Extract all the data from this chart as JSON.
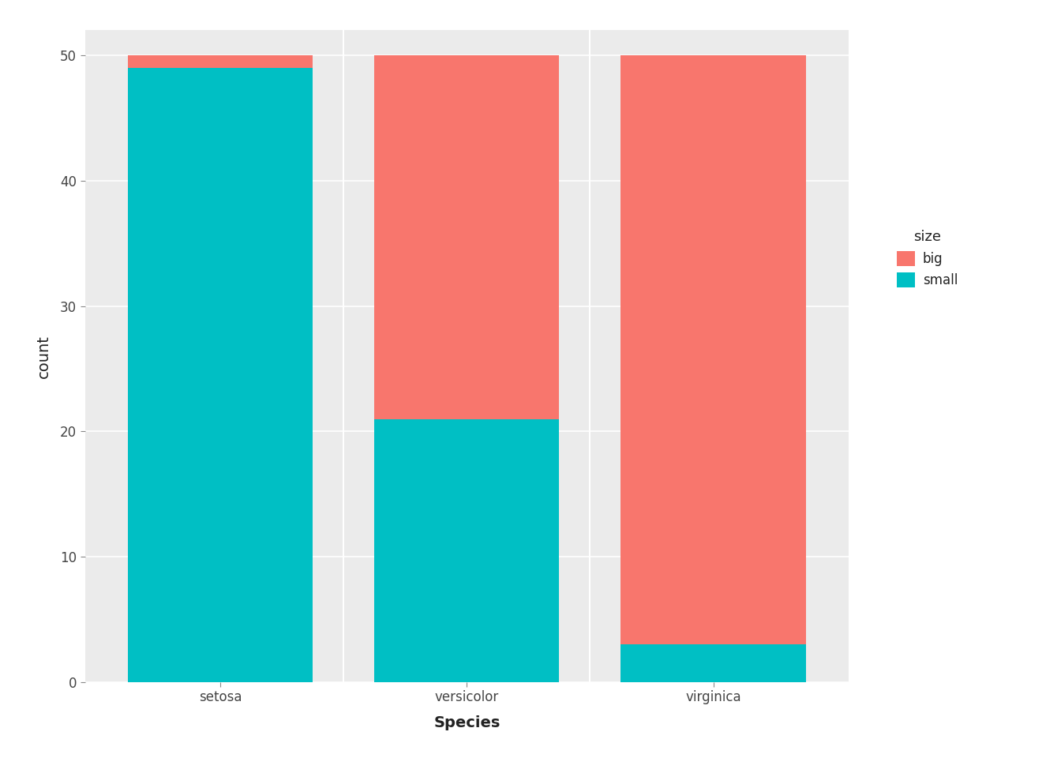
{
  "categories": [
    "setosa",
    "versicolor",
    "virginica"
  ],
  "small_values": [
    49,
    21,
    3
  ],
  "big_values": [
    1,
    29,
    47
  ],
  "color_big": "#F8766D",
  "color_small": "#00BFC4",
  "xlabel": "Species",
  "ylabel": "count",
  "legend_title": "size",
  "legend_labels": [
    "big",
    "small"
  ],
  "ylim": [
    0,
    52
  ],
  "yticks": [
    0,
    10,
    20,
    30,
    40,
    50
  ],
  "background_color": "#EBEBEB",
  "grid_color": "#FFFFFF",
  "title_fontsize": 14,
  "axis_label_fontsize": 14,
  "tick_fontsize": 12,
  "legend_fontsize": 12,
  "legend_title_fontsize": 13
}
